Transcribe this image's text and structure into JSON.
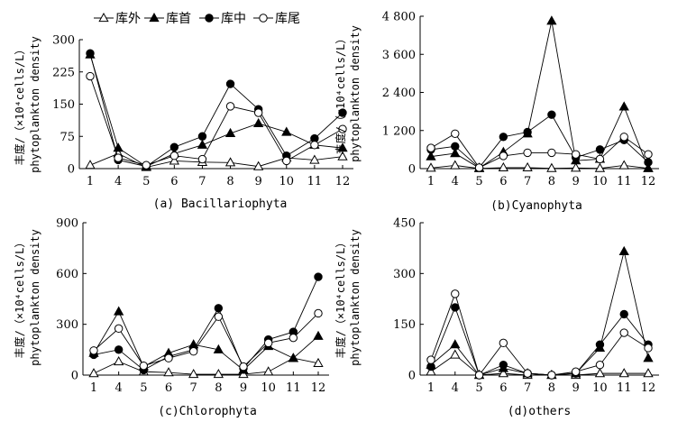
{
  "legend": [
    {
      "name": "库外",
      "marker": "open-triangle"
    },
    {
      "name": "库首",
      "marker": "filled-triangle"
    },
    {
      "name": "库中",
      "marker": "filled-circle"
    },
    {
      "name": "库尾",
      "marker": "open-circle"
    }
  ],
  "chart_data": [
    {
      "type": "line",
      "caption": "(a) Bacillariophyta",
      "ylabel_cn": "丰度/（×10⁴cells/L）",
      "ylabel_en": "phytoplankton density",
      "categories": [
        "1",
        "4",
        "5",
        "6",
        "7",
        "8",
        "9",
        "10",
        "11",
        "12"
      ],
      "ylim": [
        0,
        300
      ],
      "yticks": [
        "0",
        "75",
        "150",
        "225",
        "300"
      ],
      "series": [
        {
          "name": "库外",
          "values": [
            8,
            35,
            3,
            18,
            15,
            14,
            5,
            25,
            20,
            28
          ]
        },
        {
          "name": "库首",
          "values": [
            265,
            48,
            5,
            35,
            55,
            82,
            105,
            85,
            55,
            48
          ]
        },
        {
          "name": "库中",
          "values": [
            268,
            20,
            5,
            50,
            75,
            197,
            138,
            30,
            70,
            130
          ]
        },
        {
          "name": "库尾",
          "values": [
            215,
            25,
            8,
            30,
            22,
            145,
            130,
            18,
            55,
            92
          ]
        }
      ]
    },
    {
      "type": "line",
      "caption": "(b)Cyanophyta",
      "ylabel_cn": "丰度/（×10⁴cells/L）",
      "ylabel_en": "phytoplankton density",
      "categories": [
        "1",
        "4",
        "5",
        "6",
        "7",
        "8",
        "9",
        "10",
        "11",
        "12"
      ],
      "ylim": [
        0,
        4800
      ],
      "yticks": [
        "0",
        "1 200",
        "2 400",
        "3 600",
        "4 800"
      ],
      "series": [
        {
          "name": "库外",
          "values": [
            20,
            100,
            5,
            30,
            30,
            10,
            20,
            10,
            100,
            10
          ]
        },
        {
          "name": "库首",
          "values": [
            380,
            480,
            20,
            520,
            1100,
            4650,
            250,
            300,
            1950,
            10
          ]
        },
        {
          "name": "库中",
          "values": [
            600,
            700,
            30,
            1000,
            1150,
            1700,
            350,
            600,
            900,
            200
          ]
        },
        {
          "name": "库尾",
          "values": [
            650,
            1100,
            30,
            400,
            500,
            500,
            450,
            300,
            1000,
            450
          ]
        }
      ]
    },
    {
      "type": "line",
      "caption": "(c)Chlorophyta",
      "ylabel_cn": "丰度/（×10⁴cells/L）",
      "ylabel_en": "phytoplankton density",
      "categories": [
        "1",
        "4",
        "5",
        "6",
        "7",
        "8",
        "9",
        "10",
        "11",
        "12"
      ],
      "ylim": [
        0,
        900
      ],
      "yticks": [
        "0",
        "300",
        "600",
        "900"
      ],
      "series": [
        {
          "name": "库外",
          "values": [
            10,
            80,
            20,
            15,
            5,
            5,
            5,
            20,
            100,
            70
          ]
        },
        {
          "name": "库首",
          "values": [
            130,
            375,
            50,
            130,
            180,
            150,
            30,
            170,
            100,
            230
          ]
        },
        {
          "name": "库中",
          "values": [
            120,
            150,
            30,
            110,
            150,
            395,
            40,
            210,
            255,
            580
          ]
        },
        {
          "name": "库尾",
          "values": [
            145,
            275,
            55,
            100,
            140,
            345,
            50,
            190,
            220,
            365
          ]
        }
      ]
    },
    {
      "type": "line",
      "caption": "(d)others",
      "ylabel_cn": "丰度/（×10⁴cells/L）",
      "ylabel_en": "phytoplankton density",
      "categories": [
        "1",
        "4",
        "5",
        "6",
        "7",
        "8",
        "9",
        "10",
        "11",
        "12"
      ],
      "ylim": [
        0,
        450
      ],
      "yticks": [
        "0",
        "150",
        "300",
        "450"
      ],
      "series": [
        {
          "name": "库外",
          "values": [
            10,
            60,
            0,
            5,
            0,
            0,
            0,
            5,
            5,
            5
          ]
        },
        {
          "name": "库首",
          "values": [
            30,
            90,
            0,
            20,
            5,
            0,
            5,
            80,
            365,
            50
          ]
        },
        {
          "name": "库中",
          "values": [
            25,
            200,
            0,
            30,
            5,
            0,
            5,
            90,
            180,
            90
          ]
        },
        {
          "name": "库尾",
          "values": [
            45,
            240,
            0,
            95,
            5,
            0,
            10,
            30,
            125,
            80
          ]
        }
      ]
    }
  ]
}
